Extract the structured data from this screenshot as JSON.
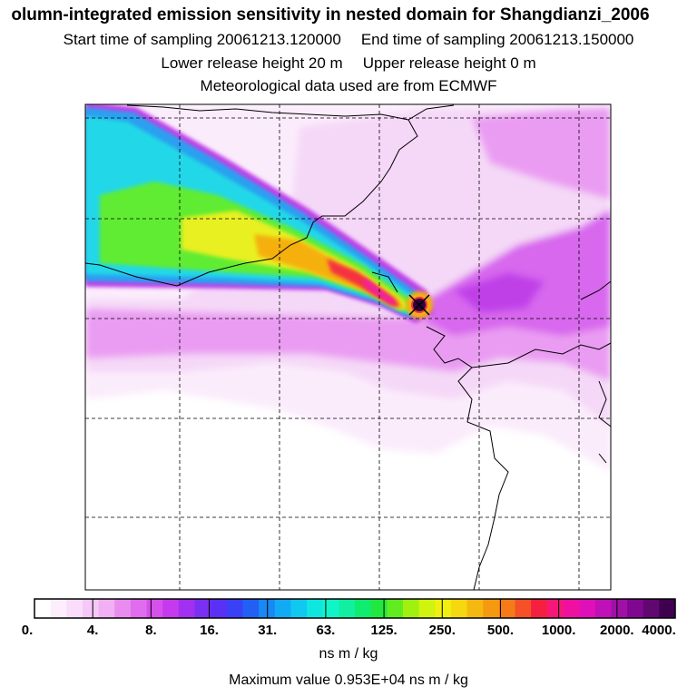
{
  "header": {
    "title": "olumn-integrated emission sensitivity in nested domain for Shangdianzi_2006",
    "start_label": "Start time of sampling 20061213.120000",
    "end_label": "End time of sampling 20061213.150000",
    "lower_label": "Lower release height   20 m",
    "upper_label": "Upper release height    0 m",
    "met_label": "Meteorological data used are from ECMWF"
  },
  "colorbar": {
    "tick_labels": [
      "0.",
      "4.",
      "8.",
      "16.",
      "31.",
      "63.",
      "125.",
      "250.",
      "500.",
      "1000.",
      "2000.",
      "4000."
    ],
    "units": "ns m / kg",
    "colors": [
      "#ffffff",
      "#fdeefd",
      "#f9ddfa",
      "#f5c8f7",
      "#f0b0f3",
      "#e98cf0",
      "#e06cee",
      "#d650ec",
      "#c63aed",
      "#a230f0",
      "#7a30f3",
      "#5a30f5",
      "#3a40f5",
      "#2260f5",
      "#1888f5",
      "#12aaf5",
      "#10c8f0",
      "#10e6e0",
      "#10f5c8",
      "#10f0a0",
      "#10ec70",
      "#20e840",
      "#60ec20",
      "#a0f010",
      "#d0f410",
      "#f0f010",
      "#f5d810",
      "#f5b810",
      "#f59a10",
      "#f57a18",
      "#f55028",
      "#f52040",
      "#f51878",
      "#f010a0",
      "#e010b8",
      "#c010b8",
      "#a010a8",
      "#800890",
      "#600870",
      "#400050"
    ]
  },
  "max_value_text": "Maximum value  0.953E+04 ns m / kg",
  "map": {
    "receptor_name": "Shangdianzi",
    "colors": {
      "light": "#f5d8f7",
      "pale": "#fbecfc",
      "mid": "#ea9cf2",
      "strong": "#d868ee",
      "deep": "#c040e8",
      "cyan": "#20d8e8",
      "blue": "#2aa0f0",
      "green": "#60ec30",
      "yellow": "#e8f020",
      "orange": "#f5b010",
      "red": "#f53040",
      "magenta": "#f020a0",
      "dark": "#300040"
    }
  }
}
